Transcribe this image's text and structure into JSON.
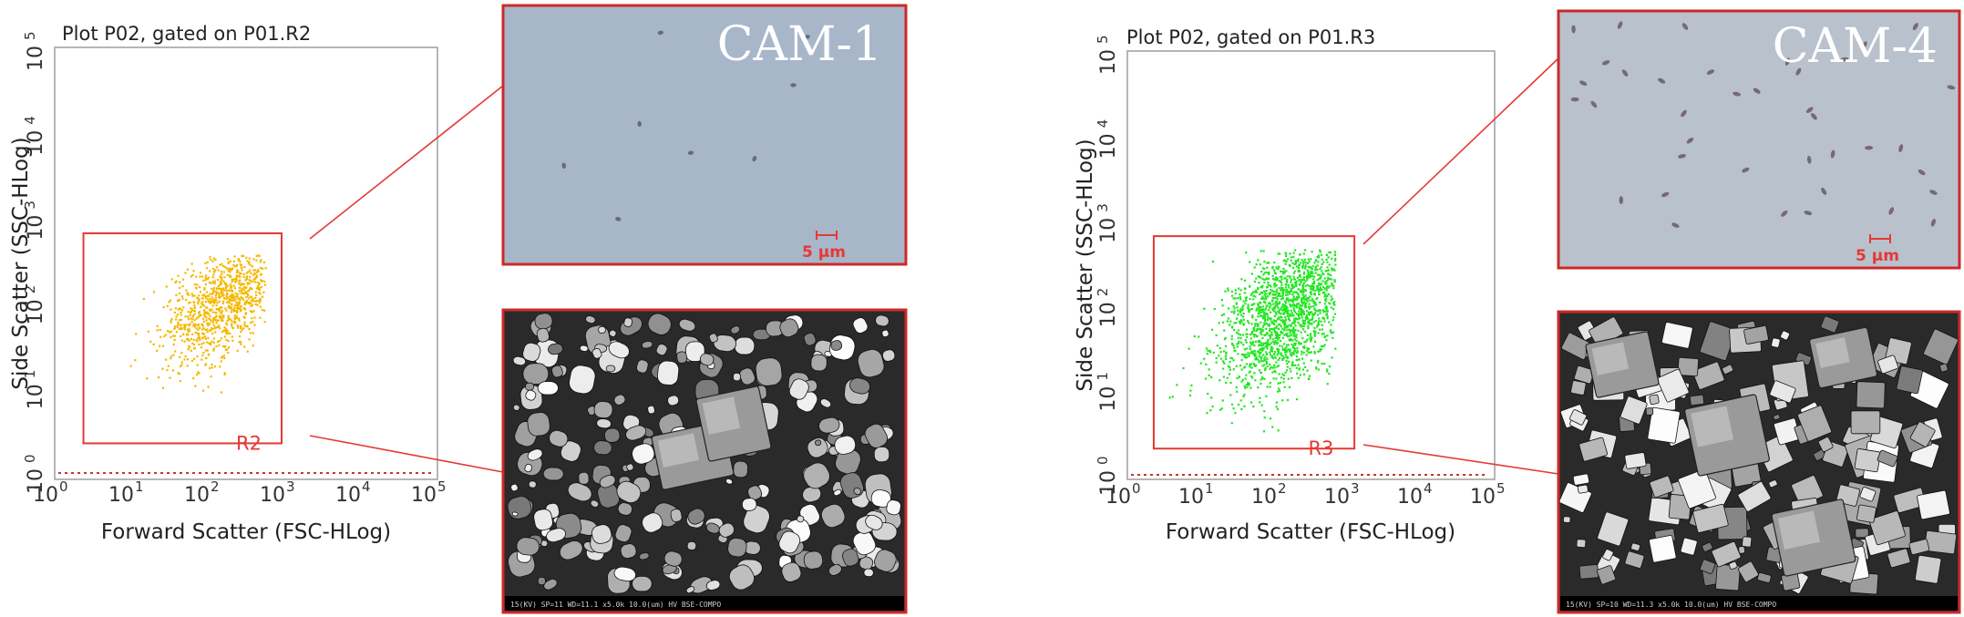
{
  "chart_data": [
    {
      "type": "scatter",
      "title": "Plot P02, gated on P01.R2",
      "xlabel": "Forward Scatter (FSC-HLog)",
      "ylabel": "Side Scatter (SSC-HLog)",
      "xscale": "log",
      "yscale": "log",
      "xlim": [
        1,
        100000
      ],
      "ylim": [
        1,
        100000
      ],
      "x_ticks": [
        "10",
        "10",
        "10",
        "10",
        "10",
        "10"
      ],
      "x_tick_exps": [
        "0",
        "1",
        "2",
        "3",
        "4",
        "5"
      ],
      "y_ticks": [
        "10",
        "10",
        "10",
        "10",
        "10",
        "10"
      ],
      "y_tick_exps": [
        "0",
        "1",
        "2",
        "3",
        "4",
        "5"
      ],
      "point_color": "#f5b800",
      "cluster": {
        "center": [
          180,
          110
        ],
        "x_range": [
          2.5,
          600
        ],
        "y_range": [
          2.5,
          400
        ],
        "approx_count": 900
      },
      "gate": {
        "name": "R2",
        "x_range": [
          2.4,
          1000
        ],
        "y_range": [
          2.3,
          700
        ]
      },
      "micrograph_label": "CAM-1",
      "scale_bar": "5 μm",
      "sem_caption": "15(KV)  SP=11  WD=11.1  x5.0k      10.0(um)   HV          BSE-COMPO"
    },
    {
      "type": "scatter",
      "title": "Plot P02, gated on P01.R3",
      "xlabel": "Forward Scatter (FSC-HLog)",
      "ylabel": "Side Scatter (SSC-HLog)",
      "xscale": "log",
      "yscale": "log",
      "xlim": [
        1,
        100000
      ],
      "ylim": [
        1,
        100000
      ],
      "x_ticks": [
        "10",
        "10",
        "10",
        "10",
        "10",
        "10"
      ],
      "x_tick_exps": [
        "0",
        "1",
        "2",
        "3",
        "4",
        "5"
      ],
      "y_ticks": [
        "10",
        "10",
        "10",
        "10",
        "10",
        "10"
      ],
      "y_tick_exps": [
        "0",
        "1",
        "2",
        "3",
        "4",
        "5"
      ],
      "point_color": "#22e622",
      "cluster": {
        "center": [
          160,
          90
        ],
        "x_range": [
          2,
          700
        ],
        "y_range": [
          2.5,
          500
        ],
        "approx_count": 1600
      },
      "gate": {
        "name": "R3",
        "x_range": [
          2.3,
          1300
        ],
        "y_range": [
          2.1,
          700
        ]
      },
      "micrograph_label": "CAM-4",
      "scale_bar": "5 μm",
      "sem_caption": "15(KV)  SP=10  WD=11.3  x5.0k      10.0(um)   HV          BSE-COMPO"
    }
  ]
}
